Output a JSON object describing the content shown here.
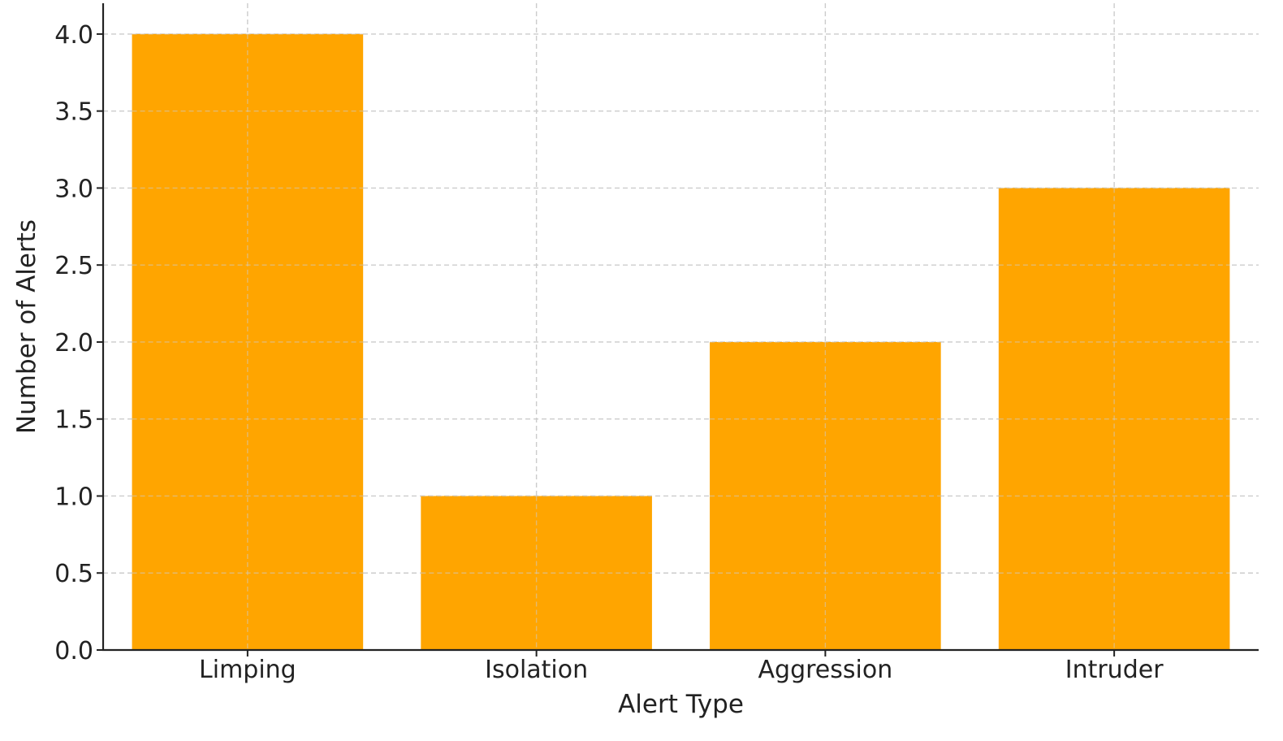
{
  "chart_data": {
    "type": "bar",
    "title": "",
    "xlabel": "Alert Type",
    "ylabel": "Number of Alerts",
    "categories": [
      "Limping",
      "Isolation",
      "Aggression",
      "Intruder"
    ],
    "values": [
      4,
      1,
      2,
      3
    ],
    "ylim": [
      0,
      4.2
    ],
    "yticks": [
      0.0,
      0.5,
      1.0,
      1.5,
      2.0,
      2.5,
      3.0,
      3.5,
      4.0
    ],
    "ytick_labels": [
      "0.0",
      "0.5",
      "1.0",
      "1.5",
      "2.0",
      "2.5",
      "3.0",
      "3.5",
      "4.0"
    ],
    "grid": true,
    "bar_color": "#FFA500",
    "grid_color": "#cccccc",
    "axis_color": "#222222"
  }
}
